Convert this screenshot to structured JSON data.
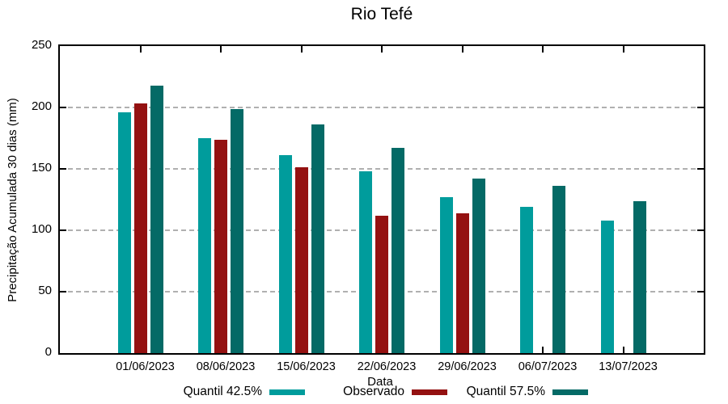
{
  "chart_data": {
    "type": "bar",
    "title": "Rio Tefé",
    "xlabel": "Data",
    "ylabel": "Precipitação Acumulada 30 dias (mm)",
    "ylim": [
      0,
      250
    ],
    "yticks": [
      0,
      50,
      100,
      150,
      200,
      250
    ],
    "grid": "horizontal dashed gridlines at y ticks",
    "legend_position": "bottom",
    "categories": [
      "01/06/2023",
      "08/06/2023",
      "15/06/2023",
      "22/06/2023",
      "29/06/2023",
      "06/07/2023",
      "13/07/2023"
    ],
    "series": [
      {
        "name": "Quantil 42.5%",
        "color": "#009C9C",
        "values": [
          196,
          175,
          161,
          148,
          127,
          119,
          108
        ]
      },
      {
        "name": "Observado",
        "color": "#941111",
        "values": [
          203,
          174,
          151,
          112,
          114,
          null,
          null
        ]
      },
      {
        "name": "Quantil 57.5%",
        "color": "#046A66",
        "values": [
          218,
          199,
          186,
          167,
          142,
          136,
          124
        ]
      }
    ],
    "colors": {
      "axis": "#000000",
      "grid": "#b0b0b0",
      "background": "#ffffff"
    }
  }
}
